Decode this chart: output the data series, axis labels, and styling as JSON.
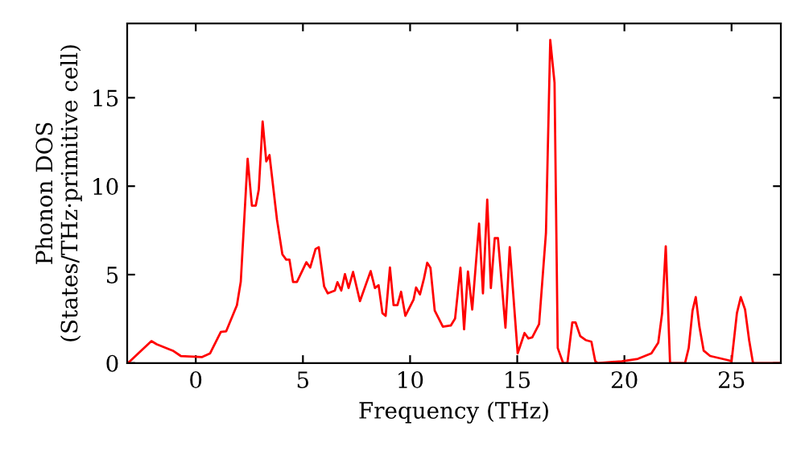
{
  "chart_data": {
    "type": "line",
    "xlabel": "Frequency (THz)",
    "ylabel": "Phonon DOS\n(States/THz·primitive cell)",
    "xlim": [
      -3.2,
      27.3
    ],
    "ylim": [
      0,
      19.2
    ],
    "xticks": [
      0,
      5,
      10,
      15,
      20,
      25
    ],
    "yticks": [
      0,
      5,
      10,
      15
    ],
    "grid": false,
    "legend": false,
    "marker": "none",
    "line_style": "solid",
    "series": [
      {
        "color": "#ff0000",
        "x": [
          -3.2,
          -3.07,
          -2.07,
          -1.82,
          -1.07,
          -0.7,
          0.3,
          0.67,
          1.17,
          1.42,
          1.92,
          2.1,
          2.42,
          2.62,
          2.8,
          2.94,
          3.12,
          3.29,
          3.44,
          3.79,
          4.04,
          4.22,
          4.37,
          4.54,
          4.72,
          5.16,
          5.34,
          5.59,
          5.74,
          5.99,
          6.16,
          6.49,
          6.61,
          6.79,
          6.96,
          7.13,
          7.34,
          7.66,
          8.16,
          8.36,
          8.53,
          8.71,
          8.86,
          9.06,
          9.23,
          9.41,
          9.58,
          9.78,
          10.16,
          10.28,
          10.46,
          10.65,
          10.8,
          10.95,
          11.15,
          11.53,
          11.9,
          12.1,
          12.35,
          12.52,
          12.7,
          12.9,
          13.22,
          13.4,
          13.6,
          13.77,
          13.95,
          14.1,
          14.45,
          14.65,
          15.02,
          15.34,
          15.52,
          15.7,
          16.02,
          16.34,
          16.54,
          16.74,
          16.89,
          17.14,
          17.34,
          17.57,
          17.72,
          17.94,
          18.19,
          18.46,
          18.64,
          18.76,
          19.88,
          20.63,
          21.26,
          21.58,
          21.76,
          21.93,
          22.13,
          22.83,
          23.0,
          23.18,
          23.33,
          23.5,
          23.7,
          24.0,
          24.88,
          25.0,
          25.25,
          25.43,
          25.63,
          25.82,
          26.0,
          27.3
        ],
        "values": [
          0,
          0.1,
          1.24,
          1.06,
          0.7,
          0.4,
          0.34,
          0.55,
          1.76,
          1.8,
          3.27,
          4.6,
          11.55,
          8.9,
          8.9,
          9.8,
          13.66,
          11.4,
          11.76,
          8.1,
          6.15,
          5.85,
          5.85,
          4.58,
          4.58,
          5.7,
          5.4,
          6.45,
          6.55,
          4.33,
          3.94,
          4.1,
          4.57,
          4.1,
          5.03,
          4.24,
          5.15,
          3.5,
          5.2,
          4.24,
          4.4,
          2.82,
          2.67,
          5.4,
          3.27,
          3.27,
          4.03,
          2.67,
          3.58,
          4.27,
          3.88,
          4.79,
          5.67,
          5.39,
          2.97,
          2.06,
          2.12,
          2.52,
          5.39,
          1.91,
          5.18,
          3.03,
          7.88,
          3.94,
          9.24,
          4.24,
          7.06,
          7.06,
          2.0,
          6.55,
          0.55,
          1.7,
          1.39,
          1.45,
          2.21,
          7.36,
          18.27,
          15.85,
          0.85,
          0,
          0,
          2.3,
          2.3,
          1.52,
          1.3,
          1.21,
          0.1,
          0,
          0.1,
          0.24,
          0.55,
          1.15,
          2.82,
          6.6,
          0,
          0,
          0.85,
          2.97,
          3.73,
          2.06,
          0.7,
          0.4,
          0.15,
          0.1,
          2.82,
          3.73,
          3.03,
          1.3,
          0,
          0
        ]
      }
    ]
  }
}
